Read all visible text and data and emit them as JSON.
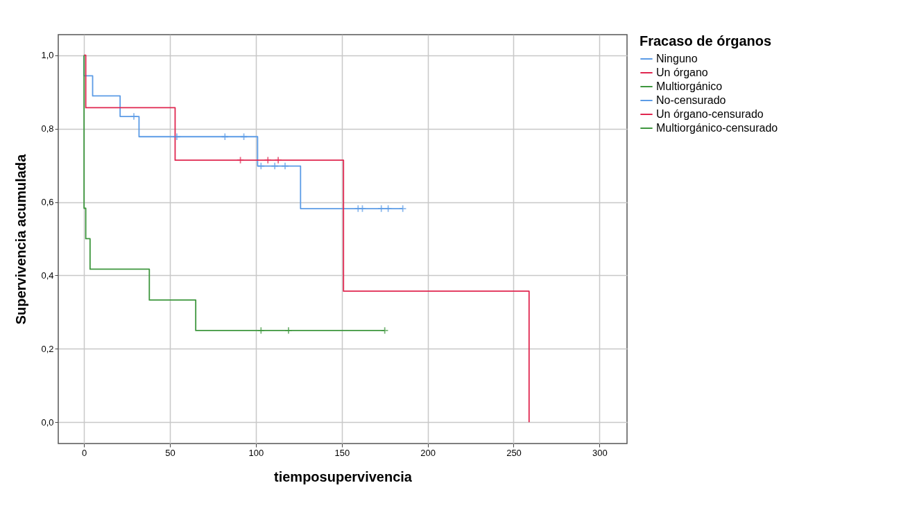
{
  "chart_data": {
    "type": "step",
    "xlabel": "tiemposupervivencia",
    "ylabel": "Supervivencia acumulada",
    "legend_title": "Fracaso de órganos",
    "legend": "top right",
    "grid": true,
    "xlim": [
      -15,
      316
    ],
    "xticks": [
      0,
      50,
      100,
      150,
      200,
      250,
      300
    ],
    "ylim": [
      -0.058,
      1.056
    ],
    "yticks": [
      {
        "value": 0,
        "label": "0,0"
      },
      {
        "value": 0.2,
        "label": "0,2"
      },
      {
        "value": 0.4,
        "label": "0,4"
      },
      {
        "value": 0.6,
        "label": "0,6"
      },
      {
        "value": 0.8,
        "label": "0,8"
      },
      {
        "value": 1,
        "label": "1,0"
      }
    ],
    "series": [
      {
        "name": "Ninguno",
        "color": "#5b9be6",
        "x": [
          0,
          0,
          5,
          21,
          32,
          101,
          126,
          185.5
        ],
        "values": [
          1.0,
          0.944,
          0.889,
          0.833,
          0.778,
          0.698,
          0.582,
          0.582
        ]
      },
      {
        "name": "Un órgano",
        "color": "#e0264f",
        "x": [
          0,
          1,
          53,
          151,
          259
        ],
        "values": [
          1.0,
          0.857,
          0.714,
          0.357,
          0
        ]
      },
      {
        "name": "Multiorgánico",
        "color": "#3d963d",
        "x": [
          0,
          0,
          1,
          3.5,
          38,
          65,
          175
        ],
        "values": [
          1.0,
          0.583,
          0.5,
          0.417,
          0.333,
          0.25,
          0.25
        ]
      },
      {
        "name": "No-censurado",
        "type": "scatter",
        "marker": "cross",
        "color": "#5b9be6",
        "x": [
          29,
          54,
          82,
          93,
          103,
          111,
          117,
          159.5,
          162,
          173,
          177,
          185.5
        ],
        "values": [
          0.833,
          0.778,
          0.778,
          0.778,
          0.698,
          0.698,
          0.698,
          0.582,
          0.582,
          0.582,
          0.582,
          0.582
        ]
      },
      {
        "name": "Un órgano-censurado",
        "type": "scatter",
        "marker": "cross",
        "color": "#e0264f",
        "x": [
          91,
          107,
          113
        ],
        "values": [
          0.714,
          0.714,
          0.714
        ]
      },
      {
        "name": "Multiorgánico-censurado",
        "type": "scatter",
        "marker": "cross",
        "color": "#3d963d",
        "x": [
          103,
          119,
          175
        ],
        "values": [
          0.25,
          0.25,
          0.25
        ]
      }
    ]
  }
}
